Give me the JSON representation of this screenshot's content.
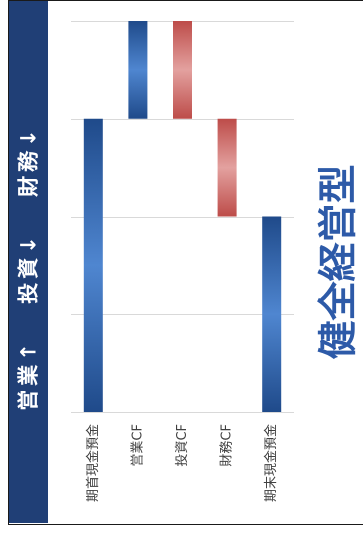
{
  "slide": {
    "title": "営業↑ 投資↓ 財務↓",
    "headline": "健全経営型"
  },
  "colors": {
    "title_band": "#203f76",
    "title_text": "#ffffff",
    "headline": "#2d5aa8",
    "frame": "#1a1a1a"
  },
  "chart_data": {
    "type": "bar",
    "waterfall": true,
    "categories": [
      "期首現金預金",
      "営業CF",
      "投資CF",
      "財務CF",
      "期末現金預金"
    ],
    "values": [
      3,
      1,
      -1,
      -1,
      2
    ],
    "total_indices": [
      0,
      4
    ],
    "ylim": [
      0,
      4
    ],
    "grid": true,
    "bar_colors": {
      "total": {
        "dark": "#1f4a8a",
        "light": "#4f86d0"
      },
      "increase": {
        "dark": "#1f4a8a",
        "light": "#4f86d0"
      },
      "decrease": {
        "dark": "#bd4c49",
        "light": "#e3a19f"
      }
    },
    "gridline_color": "#d9d9d9",
    "label_color": "#404040"
  }
}
